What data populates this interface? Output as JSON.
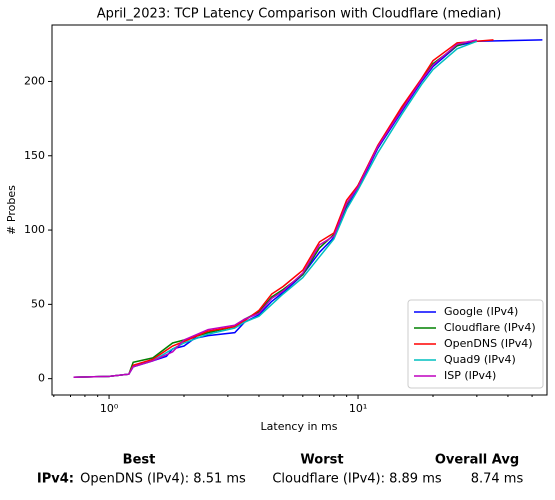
{
  "chart_data": {
    "type": "line",
    "title": "April_2023: TCP Latency Comparison with Cloudflare (median)",
    "xlabel": "Latency in ms",
    "ylabel": "# Probes",
    "xscale": "log",
    "xlim": [
      0.59,
      57.4
    ],
    "ylim": [
      -11,
      238
    ],
    "xticks": [
      {
        "value": 1,
        "label": "10⁰"
      },
      {
        "value": 10,
        "label": "10¹"
      }
    ],
    "xminorticks": [
      0.6,
      0.7,
      0.8,
      0.9,
      2,
      3,
      4,
      5,
      6,
      7,
      8,
      9,
      20,
      30,
      40,
      50
    ],
    "yticks": [
      0,
      50,
      100,
      150,
      200
    ],
    "legend": "lower right",
    "series": [
      {
        "name": "Google (IPv4)",
        "color": "#0000ff",
        "x": [
          0.72,
          1.0,
          1.2,
          1.25,
          1.5,
          1.7,
          1.8,
          2.0,
          2.2,
          2.5,
          3.2,
          3.5,
          4.0,
          4.5,
          5.0,
          6.0,
          7.0,
          8.0,
          9.0,
          10,
          12,
          15,
          18,
          20,
          25,
          30,
          55
        ],
        "values": [
          1,
          1.5,
          3,
          8,
          12,
          15,
          20,
          22,
          27,
          29,
          31,
          38,
          43,
          52,
          58,
          70,
          85,
          95,
          115,
          128,
          155,
          180,
          200,
          210,
          224,
          227,
          228
        ]
      },
      {
        "name": "Cloudflare (IPv4)",
        "color": "#008000",
        "x": [
          0.72,
          1.0,
          1.2,
          1.25,
          1.5,
          1.8,
          2.0,
          2.5,
          3.2,
          3.5,
          4.0,
          4.5,
          5.0,
          6.0,
          7.0,
          8.0,
          9.0,
          10,
          12,
          15,
          18,
          20,
          25,
          28
        ],
        "values": [
          1,
          1.5,
          3,
          11,
          14,
          24,
          26,
          31,
          35,
          40,
          45,
          55,
          60,
          70,
          88,
          97,
          117,
          130,
          156,
          182,
          201,
          212,
          224,
          227
        ]
      },
      {
        "name": "OpenDNS (IPv4)",
        "color": "#ff0000",
        "x": [
          0.72,
          1.0,
          1.2,
          1.25,
          1.5,
          1.8,
          2.0,
          2.5,
          3.2,
          3.5,
          4.0,
          4.5,
          5.0,
          6.0,
          7.0,
          8.0,
          9.0,
          10,
          12,
          15,
          18,
          20,
          25,
          35
        ],
        "values": [
          1,
          1.5,
          3,
          9,
          13,
          22,
          25,
          32,
          35,
          39,
          46,
          57,
          62,
          73,
          92,
          98,
          120,
          130,
          157,
          183,
          202,
          214,
          226,
          228
        ]
      },
      {
        "name": "Quad9 (IPv4)",
        "color": "#00bfbf",
        "x": [
          0.72,
          1.0,
          1.2,
          1.25,
          1.5,
          1.8,
          2.0,
          2.5,
          3.2,
          3.5,
          4.0,
          4.5,
          5.0,
          6.0,
          7.0,
          8.0,
          9.0,
          10,
          12,
          15,
          18,
          20,
          25,
          30
        ],
        "values": [
          1,
          1.5,
          3,
          8,
          12,
          20,
          24,
          30,
          34,
          38,
          42,
          50,
          57,
          68,
          82,
          94,
          114,
          127,
          152,
          178,
          198,
          208,
          222,
          227
        ]
      },
      {
        "name": "ISP (IPv4)",
        "color": "#bf00bf",
        "x": [
          0.72,
          1.0,
          1.2,
          1.25,
          1.5,
          1.8,
          2.0,
          2.5,
          3.2,
          3.5,
          4.0,
          4.5,
          5.0,
          6.0,
          7.0,
          8.0,
          9.0,
          10,
          12,
          15,
          18,
          20,
          25,
          30
        ],
        "values": [
          1,
          1.5,
          3,
          8,
          12,
          18,
          26,
          33,
          36,
          40,
          44,
          54,
          59,
          71,
          90,
          96,
          118,
          129,
          156,
          181,
          201,
          211,
          225,
          228
        ]
      }
    ]
  },
  "summary": {
    "columns": [
      "Best",
      "Worst",
      "Overall Avg"
    ],
    "row_label": "IPv4:",
    "row": [
      "OpenDNS (IPv4): 8.51 ms",
      "Cloudflare (IPv4): 8.89 ms",
      "8.74 ms"
    ]
  }
}
